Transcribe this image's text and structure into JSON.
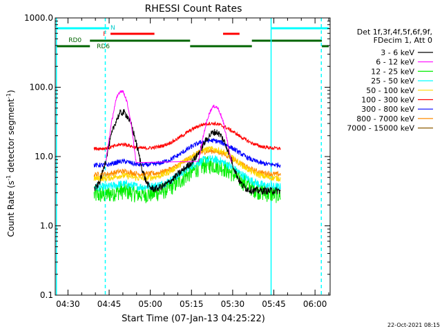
{
  "chart_data": {
    "type": "line",
    "title": "RHESSI Count Rates",
    "xlabel": "Start Time (07-Jan-13 04:25:22)",
    "ylabel_main": "Count Rate (s",
    "ylabel_sup": "-1",
    "ylabel_tail": " detector segment",
    "ylabel_sup2": "-1",
    "ylabel_close": ")",
    "yscale": "log",
    "ylim": [
      0.1,
      1000
    ],
    "xlim_minutes": [
      25.37,
      125.5
    ],
    "x_ticks": [
      {
        "label": "04:30",
        "minute": 30
      },
      {
        "label": "04:45",
        "minute": 45
      },
      {
        "label": "05:00",
        "minute": 60
      },
      {
        "label": "05:15",
        "minute": 75
      },
      {
        "label": "05:30",
        "minute": 90
      },
      {
        "label": "05:45",
        "minute": 105
      },
      {
        "label": "06:00",
        "minute": 120
      }
    ],
    "y_ticks": [
      {
        "label": "0.1",
        "value": 0.1
      },
      {
        "label": "1.0",
        "value": 1
      },
      {
        "label": "10.0",
        "value": 10
      },
      {
        "label": "100.0",
        "value": 100
      },
      {
        "label": "1000.0",
        "value": 1000
      }
    ],
    "legend_header": [
      "Det 1f,3f,4f,5f,6f,9f,",
      "FDecim 1, Att 0"
    ],
    "series": [
      {
        "name": "3 - 6 keV",
        "color": "#000000",
        "base": 3.2,
        "flare1": 40,
        "flare2": 16,
        "noise": 0.12
      },
      {
        "name": "6 - 12 keV",
        "color": "#ff00ff",
        "base": 0,
        "flare1": 85,
        "flare2": 50,
        "noise": 0.06
      },
      {
        "name": "12 - 25 keV",
        "color": "#00ee00",
        "base": 2.8,
        "flare1": 0.4,
        "flare2": 4.8,
        "noise": 0.3
      },
      {
        "name": "25 - 50 keV",
        "color": "#00ffff",
        "base": 3.6,
        "flare1": 0.4,
        "flare2": 5.5,
        "noise": 0.14
      },
      {
        "name": "50 - 100 keV",
        "color": "#ffd700",
        "base": 4.8,
        "flare1": 0.5,
        "flare2": 8.0,
        "noise": 0.1
      },
      {
        "name": "100 - 300 keV",
        "color": "#ff0000",
        "base": 13,
        "flare1": 2,
        "flare2": 17,
        "noise": 0.06
      },
      {
        "name": "300 - 800 keV",
        "color": "#0000ff",
        "base": 7.5,
        "flare1": 1,
        "flare2": 9.5,
        "noise": 0.08
      },
      {
        "name": "800 - 7000 keV",
        "color": "#ff8c00",
        "base": 5.5,
        "flare1": 0.6,
        "flare2": 6.5,
        "noise": 0.09
      },
      {
        "name": "7000 - 15000 keV",
        "color": "#8b5a00",
        "base": 0,
        "flare1": 0,
        "flare2": 0,
        "noise": 0
      }
    ],
    "data_start_minute": 39.5,
    "data_end_minute": 107.5,
    "status_bars": {
      "attenuator_label": "RD0",
      "decim_label": "RD6",
      "night_label": "N",
      "flare_label": "F",
      "cyan_segments_minutes": [
        [
          25.8,
          45.0
        ],
        [
          104.0,
          125.0
        ]
      ],
      "red_segments_minutes": [
        [
          45.5,
          61.5
        ],
        [
          86.5,
          92.5
        ]
      ],
      "green_segments_minutes": [
        [
          25.8,
          38.0
        ],
        [
          38.0,
          74.5
        ],
        [
          74.5,
          97.0
        ],
        [
          97.0,
          122.5
        ],
        [
          122.5,
          125.0
        ]
      ],
      "vlines_solid_minutes": [
        25.8,
        104.0
      ],
      "vlines_dashed_minutes": [
        43.6,
        122.3
      ]
    },
    "footer_date": "22-Oct-2021 08:15"
  }
}
